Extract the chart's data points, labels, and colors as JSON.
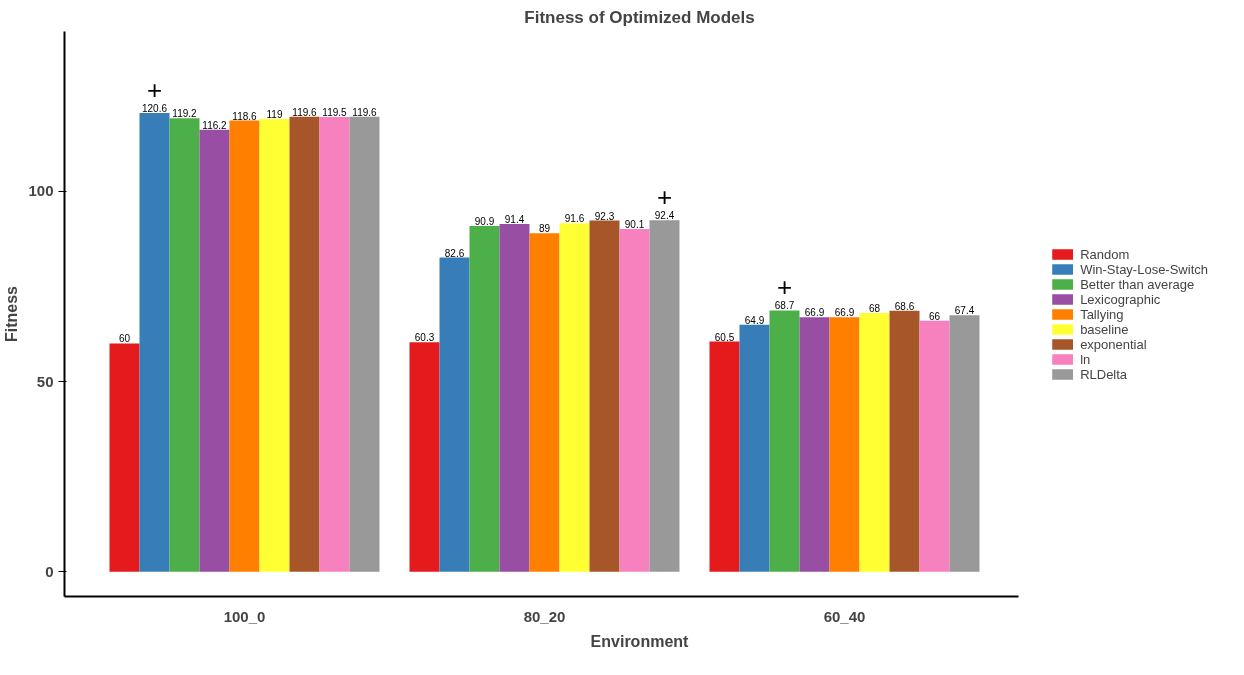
{
  "chart_data": {
    "type": "bar",
    "title": "Fitness of Optimized Models",
    "xlabel": "Environment",
    "ylabel": "Fitness",
    "categories": [
      "100_0",
      "80_20",
      "60_40"
    ],
    "series": [
      {
        "name": "Random",
        "color": "#e41a1c",
        "values": [
          60,
          60.3,
          60.5
        ]
      },
      {
        "name": "Win-Stay-Lose-Switch",
        "color": "#377eb8",
        "values": [
          120.6,
          82.6,
          64.9
        ]
      },
      {
        "name": "Better than average",
        "color": "#4daf4a",
        "values": [
          119.2,
          90.9,
          68.7
        ]
      },
      {
        "name": "Lexicographic",
        "color": "#984ea3",
        "values": [
          116.2,
          91.4,
          66.9
        ]
      },
      {
        "name": "Tallying",
        "color": "#ff7f00",
        "values": [
          118.6,
          89,
          66.9
        ]
      },
      {
        "name": "baseline",
        "color": "#ffff33",
        "values": [
          119,
          91.6,
          68
        ]
      },
      {
        "name": "exponential",
        "color": "#a65628",
        "values": [
          119.6,
          92.3,
          68.6
        ]
      },
      {
        "name": "ln",
        "color": "#f781bf",
        "values": [
          119.5,
          90.1,
          66
        ]
      },
      {
        "name": "RLDelta",
        "color": "#999999",
        "values": [
          119.6,
          92.4,
          67.4
        ]
      }
    ],
    "annotations": [
      "+",
      "+",
      "+"
    ],
    "ylim": [
      -6.5,
      142
    ],
    "yticks": [
      0,
      50,
      100
    ],
    "data_labels": true,
    "grid": false,
    "legend": "right"
  }
}
